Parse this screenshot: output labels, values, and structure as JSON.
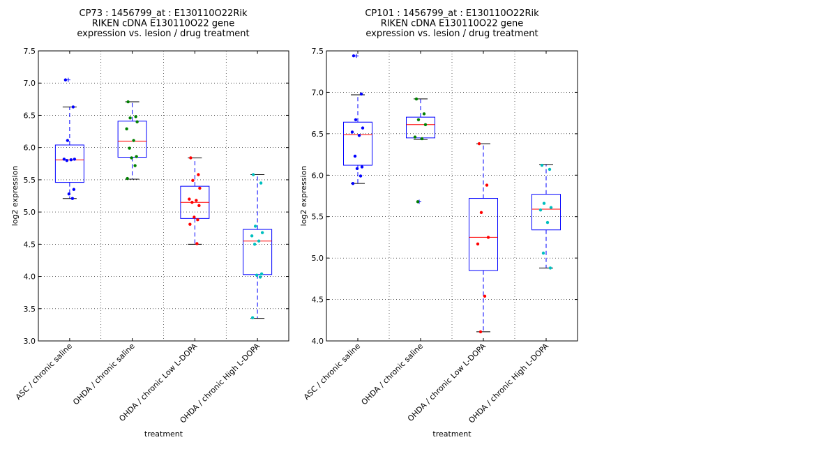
{
  "chart_data": [
    {
      "type": "box",
      "title": [
        "CP73 : 1456799_at : E130110O22Rik",
        "RIKEN cDNA E130110O22 gene",
        "expression vs. lesion / drug treatment"
      ],
      "xlabel": "treatment",
      "ylabel": "log2 expression",
      "ylim": [
        3.0,
        7.5
      ],
      "yticks": [
        "3.0",
        "3.5",
        "4.0",
        "4.5",
        "5.0",
        "5.5",
        "6.0",
        "6.5",
        "7.0",
        "7.5"
      ],
      "grid": true,
      "categories": [
        "ASC / chronic saline",
        "OHDA / chronic saline",
        "OHDA / chronic Low L-DOPA",
        "OHDA / chronic High L-DOPA"
      ],
      "colors": [
        "#0000ff",
        "#008000",
        "#ff0000",
        "#00bfbf"
      ],
      "series": [
        {
          "box": {
            "whisker_low": 5.21,
            "q1": 5.46,
            "median": 5.81,
            "q3": 6.04,
            "whisker_high": 6.63
          },
          "fliers": [
            7.05
          ],
          "points": [
            7.05,
            6.63,
            6.11,
            5.82,
            5.82,
            5.81,
            5.8,
            5.35,
            5.28,
            5.21
          ]
        },
        {
          "box": {
            "whisker_low": 5.51,
            "q1": 5.85,
            "median": 6.1,
            "q3": 6.41,
            "whisker_high": 6.71
          },
          "fliers": [],
          "points": [
            6.71,
            6.48,
            6.46,
            6.4,
            6.29,
            6.11,
            5.99,
            5.86,
            5.84,
            5.72,
            5.52
          ]
        },
        {
          "box": {
            "whisker_low": 4.5,
            "q1": 4.9,
            "median": 5.15,
            "q3": 5.4,
            "whisker_high": 5.84
          },
          "fliers": [],
          "points": [
            5.84,
            5.58,
            5.49,
            5.37,
            5.2,
            5.18,
            5.15,
            5.1,
            4.92,
            4.88,
            4.81,
            4.51
          ]
        },
        {
          "box": {
            "whisker_low": 3.35,
            "q1": 4.03,
            "median": 4.55,
            "q3": 4.73,
            "whisker_high": 5.58
          },
          "fliers": [],
          "points": [
            5.58,
            5.45,
            4.78,
            4.68,
            4.63,
            4.55,
            4.5,
            4.04,
            4.02,
            3.99,
            3.36
          ]
        }
      ]
    },
    {
      "type": "box",
      "title": [
        "CP101 : 1456799_at : E130110O22Rik",
        "RIKEN cDNA E130110O22 gene",
        "expression vs. lesion / drug treatment"
      ],
      "xlabel": "treatment",
      "ylabel": "log2 expression",
      "ylim": [
        4.0,
        7.5
      ],
      "yticks": [
        "4.0",
        "4.5",
        "5.0",
        "5.5",
        "6.0",
        "6.5",
        "7.0",
        "7.5"
      ],
      "grid": true,
      "categories": [
        "ASC / chronic saline",
        "OHDA / chronic saline",
        "OHDA / chronic Low L-DOPA",
        "OHDA / chronic High L-DOPA"
      ],
      "colors": [
        "#0000ff",
        "#008000",
        "#ff0000",
        "#00bfbf"
      ],
      "series": [
        {
          "box": {
            "whisker_low": 5.9,
            "q1": 6.12,
            "median": 6.49,
            "q3": 6.64,
            "whisker_high": 6.97
          },
          "fliers": [
            7.44
          ],
          "points": [
            7.44,
            6.98,
            6.67,
            6.57,
            6.52,
            6.48,
            6.23,
            6.1,
            6.08,
            5.99,
            5.9
          ]
        },
        {
          "box": {
            "whisker_low": 6.43,
            "q1": 6.45,
            "median": 6.61,
            "q3": 6.7,
            "whisker_high": 6.92
          },
          "fliers": [
            5.68
          ],
          "points": [
            6.92,
            6.74,
            6.67,
            6.61,
            6.46,
            6.44,
            5.68
          ]
        },
        {
          "box": {
            "whisker_low": 4.11,
            "q1": 4.85,
            "median": 5.25,
            "q3": 5.72,
            "whisker_high": 6.38
          },
          "fliers": [],
          "points": [
            6.38,
            5.88,
            5.55,
            5.25,
            5.17,
            4.54,
            4.11
          ]
        },
        {
          "box": {
            "whisker_low": 4.88,
            "q1": 5.34,
            "median": 5.59,
            "q3": 5.77,
            "whisker_high": 6.13
          },
          "fliers": [],
          "points": [
            6.12,
            6.07,
            5.66,
            5.61,
            5.58,
            5.43,
            5.06,
            4.88
          ]
        }
      ]
    }
  ]
}
